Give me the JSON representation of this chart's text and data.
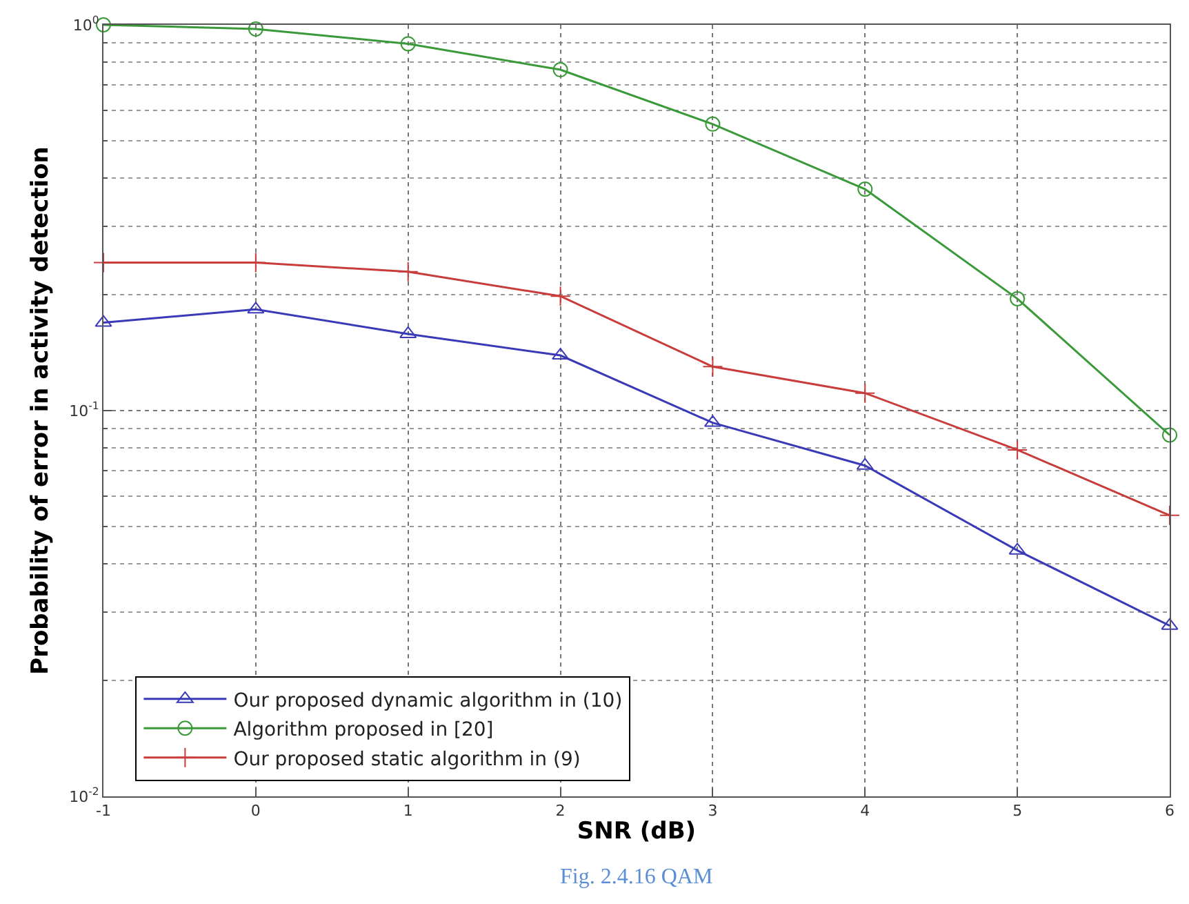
{
  "chart_data": {
    "type": "line",
    "xlabel": "SNR (dB)",
    "ylabel": "Probability of error in activity detection",
    "x": [
      -1,
      0,
      1,
      2,
      3,
      4,
      5,
      6
    ],
    "series": [
      {
        "name": "Our proposed dynamic algorithm in (10)",
        "color": "#3a3ab8",
        "marker": "triangle",
        "values": [
          0.169,
          0.183,
          0.158,
          0.139,
          0.093,
          0.072,
          0.0434,
          0.0277
        ]
      },
      {
        "name": "Algorithm proposed in [20]",
        "color": "#3a9a3a",
        "marker": "circle",
        "values": [
          1.0,
          0.976,
          0.893,
          0.765,
          0.553,
          0.375,
          0.195,
          0.0864
        ]
      },
      {
        "name": "Our proposed static algorithm in (9)",
        "color": "#c83c3c",
        "marker": "cross",
        "values": [
          0.242,
          0.242,
          0.229,
          0.198,
          0.13,
          0.111,
          0.0791,
          0.0535
        ]
      }
    ],
    "log": "y",
    "xlim": [
      -1,
      6
    ],
    "xticks": [
      -1,
      0,
      1,
      2,
      3,
      4,
      5,
      6
    ],
    "ylim": [
      0.01,
      1
    ],
    "yticks": [
      {
        "value": 0.01,
        "label": "10$^{-2}$"
      },
      {
        "value": 0.1,
        "label": "10$^{-1}$"
      },
      {
        "value": 1,
        "label": "10$^{0}$"
      }
    ],
    "grid": true,
    "legend": "bottom left",
    "line_style": "solid",
    "annotations": [
      "Fig. 2.4.16 QAM"
    ]
  }
}
